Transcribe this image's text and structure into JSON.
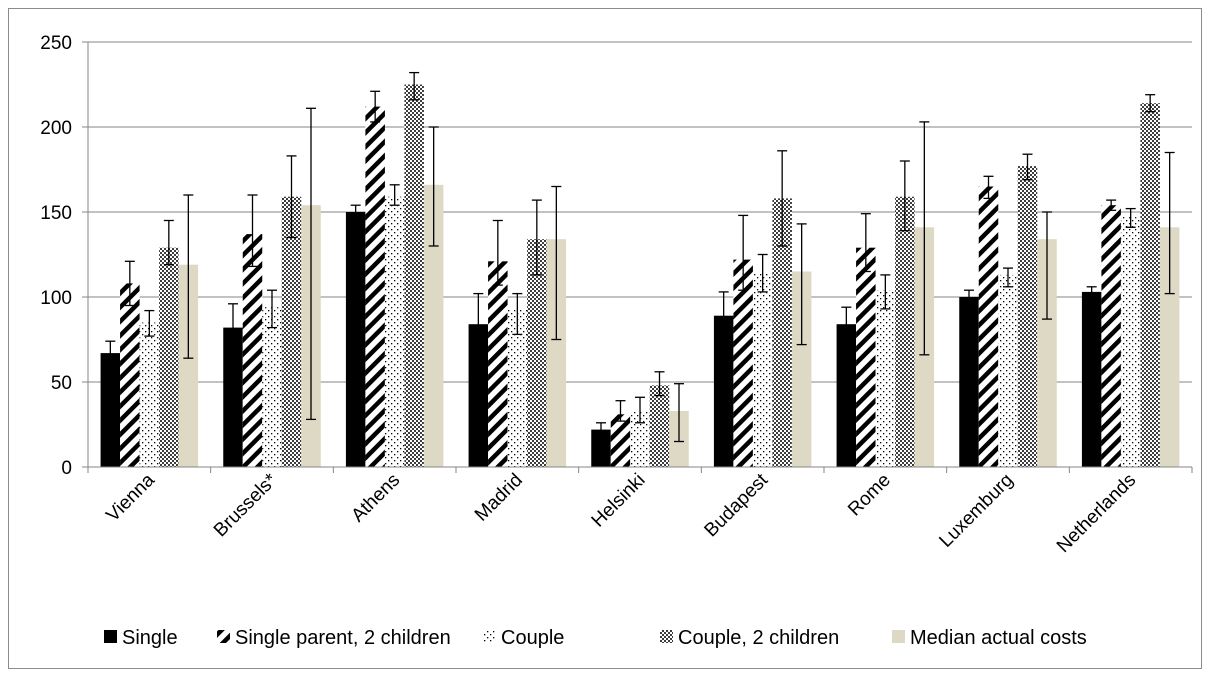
{
  "chart_data": {
    "type": "bar",
    "title": "",
    "xlabel": "",
    "ylabel": "",
    "ylim": [
      0,
      250
    ],
    "yticks": [
      0,
      50,
      100,
      150,
      200,
      250
    ],
    "grid": true,
    "legend_position": "bottom",
    "categories": [
      "Vienna",
      "Brussels*",
      "Athens",
      "Madrid",
      "Helsinki",
      "Budapest",
      "Rome",
      "Luxemburg",
      "Netherlands"
    ],
    "series": [
      {
        "name": "Single",
        "pattern": "solid-black",
        "values": [
          67,
          82,
          150,
          84,
          22,
          89,
          84,
          100,
          103
        ],
        "error_low": [
          61,
          69,
          146,
          68,
          19,
          77,
          74,
          97,
          101
        ],
        "error_high": [
          74,
          96,
          154,
          102,
          26,
          103,
          94,
          104,
          106
        ]
      },
      {
        "name": "Single parent, 2 children",
        "pattern": "diagonal-stripes",
        "values": [
          108,
          137,
          212,
          121,
          31,
          122,
          129,
          165,
          154
        ],
        "error_low": [
          95,
          118,
          203,
          107,
          27,
          104,
          115,
          158,
          151
        ],
        "error_high": [
          121,
          160,
          221,
          145,
          39,
          148,
          149,
          171,
          157
        ]
      },
      {
        "name": "Couple",
        "pattern": "dotted",
        "values": [
          85,
          94,
          159,
          93,
          33,
          114,
          104,
          113,
          147
        ],
        "error_low": [
          77,
          82,
          154,
          78,
          26,
          103,
          93,
          106,
          141
        ],
        "error_high": [
          92,
          104,
          166,
          102,
          41,
          125,
          113,
          117,
          152
        ]
      },
      {
        "name": "Couple, 2 children",
        "pattern": "crosshatch",
        "values": [
          129,
          159,
          225,
          134,
          48,
          158,
          159,
          177,
          214
        ],
        "error_low": [
          119,
          135,
          216,
          113,
          42,
          130,
          139,
          169,
          209
        ],
        "error_high": [
          145,
          183,
          232,
          157,
          56,
          186,
          180,
          184,
          219
        ]
      },
      {
        "name": "Median actual costs",
        "pattern": "solid-beige",
        "values": [
          119,
          154,
          166,
          134,
          33,
          115,
          141,
          134,
          141
        ],
        "error_low": [
          64,
          28,
          130,
          75,
          15,
          72,
          66,
          87,
          102
        ],
        "error_high": [
          160,
          211,
          200,
          165,
          49,
          143,
          203,
          150,
          185
        ]
      }
    ]
  },
  "colors": {
    "single": "#000000",
    "median": "#ddd9c4",
    "grid": "#868686",
    "error_bar": "#000000"
  }
}
